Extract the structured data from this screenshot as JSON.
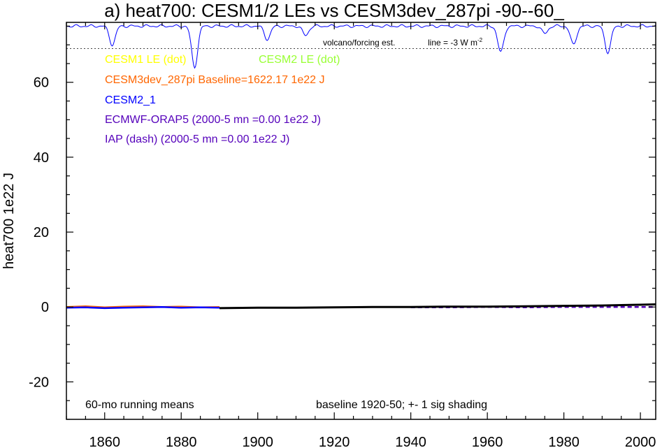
{
  "chart_data": {
    "type": "line",
    "title": "a) heat700: CESM1/2 LEs vs CESM3dev_287pi -90--60_",
    "ylabel": "heat700 1e22 J",
    "xlabel": "",
    "xlim": [
      1850,
      2004
    ],
    "ylim": [
      -30,
      76
    ],
    "xticks": [
      1860,
      1880,
      1900,
      1920,
      1940,
      1960,
      1980,
      2000
    ],
    "xtick_labels": [
      "1860",
      "1880",
      "1900",
      "1920",
      "1940",
      "1960",
      "1980",
      "2000"
    ],
    "yticks": [
      -20,
      0,
      20,
      40,
      60
    ],
    "ytick_labels": [
      "-20",
      "0",
      "20",
      "40",
      "60"
    ],
    "grid": false,
    "legend": [
      {
        "label": "CESM1 LE (dot)",
        "color": "#ffff00"
      },
      {
        "label": "CESM2 LE (dot)",
        "color": "#99ff33"
      },
      {
        "label": "CESM3dev_287pi Baseline=1622.17 1e22 J",
        "color": "#ff6600"
      },
      {
        "label": "CESM2_1",
        "color": "#0000ff"
      },
      {
        "label": "ECMWF-ORAP5 (2000-5 mn =0.00 1e22 J)",
        "color": "#5500bb"
      },
      {
        "label": "IAP (dash) (2000-5 mn =0.00 1e22 J)",
        "color": "#5500bb"
      }
    ],
    "annotations": {
      "volcano_label": "volcano/forcing est.",
      "line_label": "line = -3 W m",
      "line_label_sup": "-2",
      "note_left": "60-mo running means",
      "note_right": "baseline 1920-50; +- 1 sig shading"
    },
    "volcano_reference_y": 69,
    "volcano_top_y": 75,
    "volcano_dips": [
      {
        "year": 1862,
        "depth": 5
      },
      {
        "year": 1883.5,
        "depth": 11
      },
      {
        "year": 1902.5,
        "depth": 3.5
      },
      {
        "year": 1912.5,
        "depth": 2.5
      },
      {
        "year": 1963.5,
        "depth": 7
      },
      {
        "year": 1975,
        "depth": 2
      },
      {
        "year": 1982.5,
        "depth": 5
      },
      {
        "year": 1991.5,
        "depth": 7
      }
    ],
    "series": [
      {
        "name": "CESM3dev_287pi",
        "color": "#ff6600",
        "x": [
          1850,
          1855,
          1860,
          1865,
          1870,
          1875,
          1880,
          1885,
          1890
        ],
        "y": [
          0.0,
          0.2,
          -0.1,
          0.1,
          0.2,
          0.0,
          0.1,
          -0.1,
          0.0
        ]
      },
      {
        "name": "CESM2_1",
        "color": "#0000ff",
        "x": [
          1850,
          1855,
          1860,
          1865,
          1870,
          1875,
          1880,
          1885,
          1890
        ],
        "y": [
          -0.2,
          -0.1,
          -0.3,
          -0.2,
          -0.1,
          0.0,
          -0.2,
          -0.1,
          -0.2
        ]
      },
      {
        "name": "ECMWF-ORAP5",
        "color": "#5500bb",
        "x": [
          1940,
          1950,
          1960,
          1970,
          1980,
          1990,
          2000,
          2004
        ],
        "y": [
          -0.1,
          -0.1,
          0.0,
          -0.1,
          0.0,
          0.0,
          0.0,
          0.0
        ]
      },
      {
        "name": "black",
        "color": "#000000",
        "x": [
          1890,
          1900,
          1910,
          1920,
          1930,
          1940,
          1950,
          1960,
          1970,
          1980,
          1990,
          2000,
          2004
        ],
        "y": [
          -0.3,
          -0.2,
          -0.2,
          -0.1,
          0.0,
          0.0,
          0.1,
          0.1,
          0.2,
          0.3,
          0.4,
          0.6,
          0.7
        ]
      }
    ]
  }
}
